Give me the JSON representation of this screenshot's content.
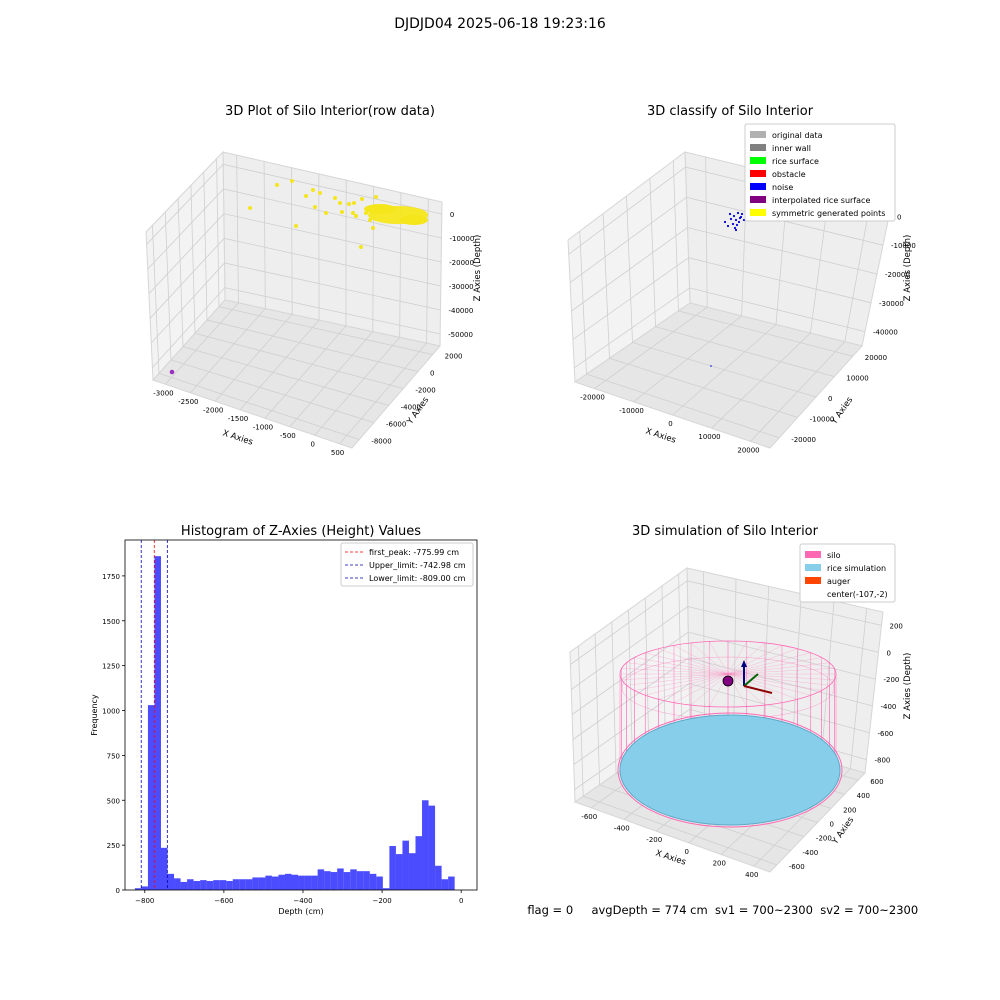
{
  "suptitle": "DJDJD04 2025-06-18 19:23:16",
  "panel1": {
    "title": "3D Plot of Silo Interior(row data)",
    "xlabel": "X Axies",
    "ylabel": "Y Axies",
    "zlabel": "Z Axies (Depth)",
    "xticks": [
      "-3000",
      "-2500",
      "-2000",
      "-1500",
      "-1000",
      "-500",
      "0",
      "500"
    ],
    "yticks": [
      "2000",
      "0",
      "-2000",
      "-4000",
      "-6000",
      "-8000"
    ],
    "zticks": [
      "0",
      "-10000",
      "-20000",
      "-30000",
      "-40000",
      "-50000"
    ],
    "point_color": "#f5e61b"
  },
  "panel2": {
    "title": "3D classify of Silo Interior",
    "xlabel": "X Axies",
    "ylabel": "Y Axies",
    "zlabel": "Z Axies (Depth)",
    "xticks": [
      "-20000",
      "-10000",
      "0",
      "10000",
      "20000"
    ],
    "yticks": [
      "20000",
      "10000",
      "0",
      "-10000",
      "-20000"
    ],
    "zticks": [
      "0",
      "-10000",
      "-20000",
      "-30000",
      "-40000"
    ],
    "legend": [
      {
        "label": "original data",
        "color": "#b0b0b0"
      },
      {
        "label": "inner wall",
        "color": "#808080"
      },
      {
        "label": "rice surface",
        "color": "#00ff00"
      },
      {
        "label": "obstacle",
        "color": "#ff0000"
      },
      {
        "label": "noise",
        "color": "#0000ff"
      },
      {
        "label": "interpolated rice surface",
        "color": "#800080"
      },
      {
        "label": "symmetric generated points",
        "color": "#ffff00"
      }
    ]
  },
  "panel4": {
    "title": "3D simulation of Silo Interior",
    "xlabel": "X Axies",
    "ylabel": "Y Axies",
    "zlabel": "Z Axies (Depth)",
    "xticks": [
      "-600",
      "-400",
      "-200",
      "0",
      "200",
      "400"
    ],
    "yticks": [
      "600",
      "400",
      "200",
      "0",
      "-200",
      "-400",
      "-600"
    ],
    "zticks": [
      "200",
      "0",
      "-200",
      "-400",
      "-600",
      "-800"
    ],
    "legend": [
      {
        "label": "silo",
        "color": "#ff69b4"
      },
      {
        "label": "rice simulation",
        "color": "#87ceeb"
      },
      {
        "label": "auger",
        "color": "#ff4500"
      },
      {
        "label": "center(-107,-2)",
        "color": ""
      }
    ]
  },
  "footer": {
    "flag": "flag = 0",
    "stats": "avgDepth = 774 cm  sv1 = 700~2300  sv2 = 700~2300"
  },
  "chart_data": [
    {
      "type": "scatter",
      "title": "3D Plot of Silo Interior(row data)",
      "xlabel": "X Axies",
      "ylabel": "Y Axies",
      "zlabel": "Z Axies (Depth)",
      "xlim": [
        -3100,
        550
      ],
      "ylim": [
        -8000,
        2200
      ],
      "zlim": [
        -50000,
        500
      ],
      "grid": true
    },
    {
      "type": "scatter",
      "title": "3D classify of Silo Interior",
      "xlabel": "X Axies",
      "ylabel": "Y Axies",
      "zlabel": "Z Axies (Depth)",
      "xlim": [
        -25000,
        25000
      ],
      "ylim": [
        -25000,
        25000
      ],
      "zlim": [
        -45000,
        500
      ],
      "grid": true,
      "legend_position": "upper right"
    },
    {
      "type": "bar",
      "title": "Histogram of Z-Axies (Height) Values",
      "xlabel": "Depth (cm)",
      "ylabel": "Frequency",
      "xlim": [
        -850,
        40
      ],
      "ylim": [
        0,
        1950
      ],
      "xticks": [
        "−800",
        "−600",
        "−400",
        "−200",
        "0"
      ],
      "yticks": [
        "0",
        "250",
        "500",
        "750",
        "1000",
        "1250",
        "1500",
        "1750"
      ],
      "bin_start": -825,
      "bin_width": 16.5,
      "values": [
        10,
        20,
        1030,
        1860,
        235,
        90,
        65,
        45,
        60,
        50,
        55,
        50,
        55,
        55,
        50,
        60,
        60,
        60,
        70,
        70,
        80,
        75,
        85,
        90,
        85,
        80,
        80,
        80,
        115,
        105,
        100,
        120,
        100,
        115,
        105,
        105,
        90,
        75,
        10,
        245,
        200,
        275,
        205,
        300,
        500,
        470,
        135,
        60,
        75
      ],
      "bar_color": "#0000ff",
      "vlines": [
        {
          "label": "first_peak: -775.99 cm",
          "x": -775.99,
          "color": "#ff0000"
        },
        {
          "label": "Upper_limit: -742.98 cm",
          "x": -742.98,
          "color": "#0000aa"
        },
        {
          "label": "Lower_limit: -809.00 cm",
          "x": -809.0,
          "color": "#0000aa"
        }
      ],
      "legend_position": "upper right"
    },
    {
      "type": "scatter",
      "title": "3D simulation of Silo Interior",
      "xlabel": "X Axies",
      "ylabel": "Y Axies",
      "zlabel": "Z Axies (Depth)",
      "xlim": [
        -650,
        450
      ],
      "ylim": [
        -650,
        650
      ],
      "zlim": [
        -900,
        300
      ],
      "grid": true,
      "legend_position": "upper right"
    }
  ]
}
